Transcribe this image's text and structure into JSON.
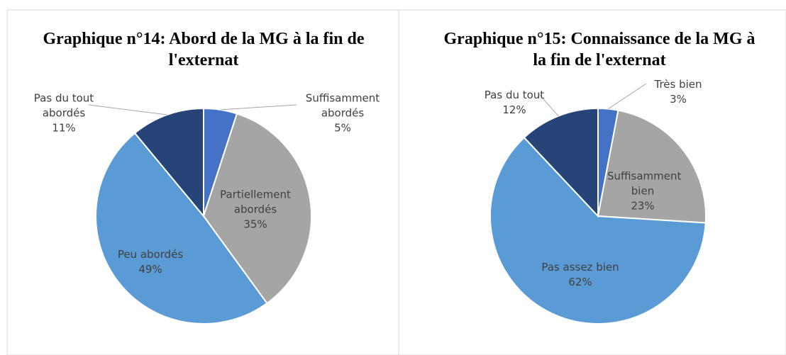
{
  "chart_data": [
    {
      "type": "pie",
      "title": "Graphique n°14: Abord de la MG à la fin de l'externat",
      "categories": [
        "Suffisamment abordés",
        "Partiellement abordés",
        "Peu abordés",
        "Pas du tout abordés"
      ],
      "values": [
        5,
        35,
        49,
        11
      ],
      "value_labels": [
        "5%",
        "35%",
        "49%",
        "11%"
      ],
      "colors": [
        "#4472c4",
        "#a5a5a5",
        "#5b9bd5",
        "#264478"
      ]
    },
    {
      "type": "pie",
      "title": "Graphique n°15: Connaissance de la MG à la fin de l'externat",
      "categories": [
        "Très bien",
        "Suffisamment bien",
        "Pas assez bien",
        "Pas du tout"
      ],
      "values": [
        3,
        23,
        62,
        12
      ],
      "value_labels": [
        "3%",
        "23%",
        "62%",
        "12%"
      ],
      "colors": [
        "#4472c4",
        "#a5a5a5",
        "#5b9bd5",
        "#264478"
      ]
    }
  ]
}
